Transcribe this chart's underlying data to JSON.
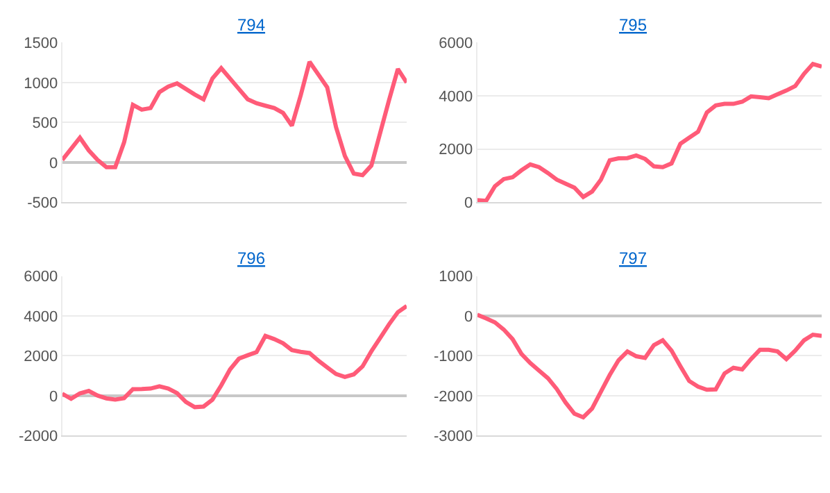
{
  "chart_data": [
    {
      "type": "line",
      "title": "794",
      "categories": [
        null,
        null,
        null,
        null,
        null,
        null,
        null,
        null,
        null,
        null,
        null,
        null,
        null,
        null,
        null,
        null,
        null,
        null,
        null,
        null,
        null,
        null,
        null,
        null,
        null,
        null,
        null,
        null,
        null,
        null,
        null,
        null,
        null,
        null,
        null,
        null,
        null,
        null,
        null,
        null
      ],
      "series": [
        {
          "color": "#ff5b78",
          "values": [
            30,
            170,
            310,
            150,
            30,
            -60,
            -60,
            250,
            720,
            660,
            680,
            880,
            950,
            990,
            920,
            850,
            790,
            1050,
            1180,
            1050,
            920,
            790,
            740,
            710,
            680,
            620,
            460,
            840,
            1260,
            1100,
            940,
            440,
            80,
            -140,
            -160,
            -40,
            370,
            780,
            1170,
            1000
          ]
        }
      ],
      "ylim": [
        -500,
        1500
      ],
      "yticks": [
        -500,
        0,
        500,
        1000,
        1500
      ],
      "grid": "y",
      "tick_labels": "y",
      "marker": "none",
      "line_style": "solid"
    },
    {
      "type": "line",
      "title": "795",
      "categories": [
        null,
        null,
        null,
        null,
        null,
        null,
        null,
        null,
        null,
        null,
        null,
        null,
        null,
        null,
        null,
        null,
        null,
        null,
        null,
        null,
        null,
        null,
        null,
        null,
        null,
        null,
        null,
        null,
        null,
        null,
        null,
        null,
        null,
        null,
        null,
        null,
        null,
        null,
        null,
        null
      ],
      "series": [
        {
          "color": "#ff5b78",
          "values": [
            80,
            50,
            600,
            870,
            940,
            1200,
            1420,
            1320,
            1100,
            850,
            700,
            550,
            200,
            400,
            850,
            1580,
            1650,
            1660,
            1760,
            1630,
            1350,
            1320,
            1460,
            2200,
            2430,
            2650,
            3380,
            3640,
            3700,
            3700,
            3780,
            3980,
            3950,
            3910,
            4060,
            4200,
            4370,
            4830,
            5200,
            5100
          ]
        }
      ],
      "ylim": [
        0,
        6000
      ],
      "yticks": [
        0,
        2000,
        4000,
        6000
      ],
      "grid": "y",
      "tick_labels": "y",
      "marker": "none",
      "line_style": "solid"
    },
    {
      "type": "line",
      "title": "796",
      "categories": [
        null,
        null,
        null,
        null,
        null,
        null,
        null,
        null,
        null,
        null,
        null,
        null,
        null,
        null,
        null,
        null,
        null,
        null,
        null,
        null,
        null,
        null,
        null,
        null,
        null,
        null,
        null,
        null,
        null,
        null,
        null,
        null,
        null,
        null,
        null,
        null,
        null,
        null,
        null,
        null
      ],
      "series": [
        {
          "color": "#ff5b78",
          "values": [
            100,
            -150,
            120,
            240,
            10,
            -130,
            -190,
            -120,
            330,
            340,
            360,
            470,
            360,
            130,
            -310,
            -570,
            -540,
            -200,
            520,
            1320,
            1860,
            2030,
            2190,
            3000,
            2840,
            2630,
            2290,
            2200,
            2140,
            1760,
            1420,
            1090,
            940,
            1070,
            1470,
            2230,
            2900,
            3580,
            4190,
            4500
          ]
        }
      ],
      "ylim": [
        -2000,
        6000
      ],
      "yticks": [
        -2000,
        0,
        2000,
        4000,
        6000
      ],
      "grid": "y",
      "tick_labels": "y",
      "marker": "none",
      "line_style": "solid"
    },
    {
      "type": "line",
      "title": "797",
      "categories": [
        null,
        null,
        null,
        null,
        null,
        null,
        null,
        null,
        null,
        null,
        null,
        null,
        null,
        null,
        null,
        null,
        null,
        null,
        null,
        null,
        null,
        null,
        null,
        null,
        null,
        null,
        null,
        null,
        null,
        null,
        null,
        null,
        null,
        null,
        null,
        null,
        null,
        null,
        null,
        null
      ],
      "series": [
        {
          "color": "#ff5b78",
          "values": [
            30,
            -60,
            -160,
            -340,
            -580,
            -950,
            -1180,
            -1370,
            -1560,
            -1830,
            -2170,
            -2450,
            -2540,
            -2320,
            -1900,
            -1480,
            -1110,
            -890,
            -1010,
            -1050,
            -730,
            -610,
            -870,
            -1260,
            -1630,
            -1770,
            -1850,
            -1840,
            -1440,
            -1300,
            -1340,
            -1080,
            -850,
            -850,
            -890,
            -1080,
            -870,
            -610,
            -470,
            -500
          ]
        }
      ],
      "ylim": [
        -3000,
        1000
      ],
      "yticks": [
        -3000,
        -2000,
        -1000,
        0,
        1000
      ],
      "grid": "y",
      "tick_labels": "y",
      "marker": "none",
      "line_style": "solid"
    }
  ]
}
